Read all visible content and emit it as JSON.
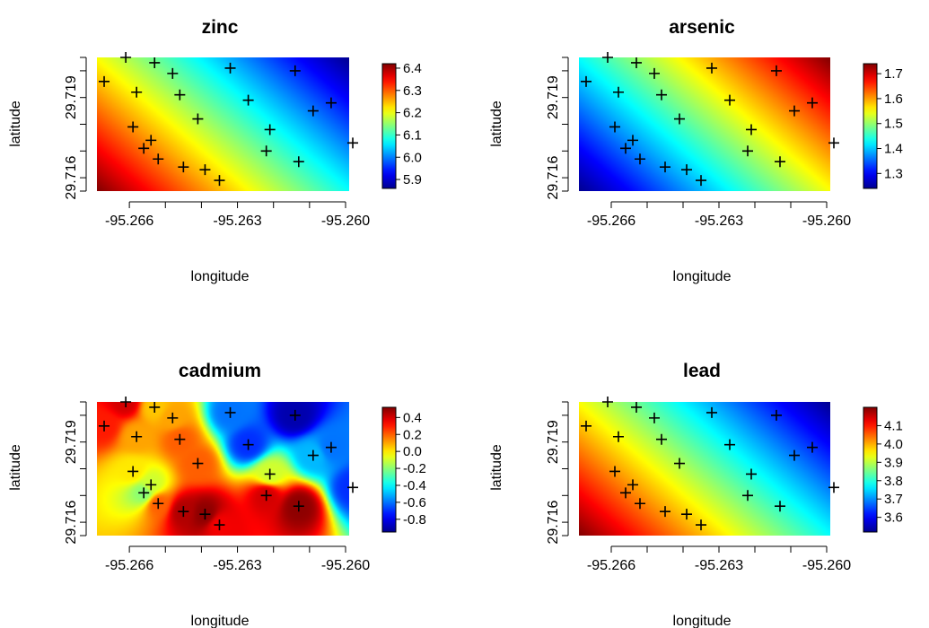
{
  "shared": {
    "xlabel": "longitude",
    "ylabel": "latitude",
    "xlim": [
      -95.2669,
      -95.2599
    ],
    "ylim": [
      29.7155,
      29.7205
    ],
    "x_ticks": [
      "-95.266",
      "-95.263",
      "-95.260"
    ],
    "y_ticks": [
      "29.716",
      "29.719"
    ],
    "x_tick_values": [
      -95.266,
      -95.265,
      -95.264,
      -95.263,
      -95.262,
      -95.261,
      -95.26
    ],
    "y_tick_values": [
      29.7155,
      29.716,
      29.717,
      29.718,
      29.719,
      29.72,
      29.7205
    ],
    "colormap": [
      "#00008f",
      "#0000ff",
      "#0080ff",
      "#00ffff",
      "#80ff80",
      "#ffff00",
      "#ff8000",
      "#ff0000",
      "#800000"
    ]
  },
  "samples": [
    {
      "lon": -95.2667,
      "lat": 29.7196
    },
    {
      "lon": -95.2661,
      "lat": 29.7205
    },
    {
      "lon": -95.2658,
      "lat": 29.7192
    },
    {
      "lon": -95.2659,
      "lat": 29.7179
    },
    {
      "lon": -95.2646,
      "lat": 29.7191
    },
    {
      "lon": -95.2645,
      "lat": 29.7164
    },
    {
      "lon": -95.2639,
      "lat": 29.7163
    },
    {
      "lon": -95.2648,
      "lat": 29.7199
    },
    {
      "lon": -95.2653,
      "lat": 29.7203
    },
    {
      "lon": -95.2635,
      "lat": 29.7159
    },
    {
      "lon": -95.2613,
      "lat": 29.7166
    },
    {
      "lon": -95.2609,
      "lat": 29.7185
    },
    {
      "lon": -95.2614,
      "lat": 29.72
    },
    {
      "lon": -95.2604,
      "lat": 29.7188
    },
    {
      "lon": -95.2598,
      "lat": 29.7173
    },
    {
      "lon": -95.2641,
      "lat": 29.7182
    },
    {
      "lon": -95.2621,
      "lat": 29.7178
    },
    {
      "lon": -95.2627,
      "lat": 29.7189
    },
    {
      "lon": -95.2632,
      "lat": 29.7201
    },
    {
      "lon": -95.2622,
      "lat": 29.717
    },
    {
      "lon": -95.2656,
      "lat": 29.7171
    },
    {
      "lon": -95.2654,
      "lat": 29.7174
    },
    {
      "lon": -95.2652,
      "lat": 29.7167
    }
  ],
  "chart_data": [
    {
      "type": "heatmap",
      "title": "zinc",
      "xlabel": "longitude",
      "ylabel": "latitude",
      "colorbar": {
        "min": 5.86,
        "max": 6.42,
        "ticks": [
          "6.4",
          "6.3",
          "6.2",
          "6.1",
          "6.0",
          "5.9"
        ],
        "tick_values": [
          6.4,
          6.3,
          6.2,
          6.1,
          6.0,
          5.9
        ]
      },
      "surface": {
        "kind": "linear",
        "low_corner": "bottom-left",
        "high_corner": "top-right",
        "min": 5.86,
        "max": 6.42,
        "invert": true
      }
    },
    {
      "type": "heatmap",
      "title": "arsenic",
      "xlabel": "longitude",
      "ylabel": "latitude",
      "colorbar": {
        "min": 1.24,
        "max": 1.74,
        "ticks": [
          "1.7",
          "1.6",
          "1.5",
          "1.4",
          "1.3"
        ],
        "tick_values": [
          1.7,
          1.6,
          1.5,
          1.4,
          1.3
        ]
      },
      "surface": {
        "kind": "linear",
        "low_corner": "bottom-left",
        "high_corner": "top-right",
        "min": 1.24,
        "max": 1.74,
        "invert": false
      }
    },
    {
      "type": "heatmap",
      "title": "cadmium",
      "xlabel": "longitude",
      "ylabel": "latitude",
      "colorbar": {
        "min": -0.95,
        "max": 0.52,
        "ticks": [
          "0.4",
          "0.2",
          "0.0",
          "-0.2",
          "-0.4",
          "-0.6",
          "-0.8"
        ],
        "tick_values": [
          0.4,
          0.2,
          0.0,
          -0.2,
          -0.4,
          -0.6,
          -0.8
        ]
      },
      "surface": {
        "kind": "idw",
        "min": -0.95,
        "max": 0.52,
        "sample_values": [
          0.3,
          0.4,
          0.1,
          0.0,
          0.2,
          0.45,
          0.5,
          0.1,
          0.05,
          0.35,
          0.5,
          -0.5,
          -0.9,
          -0.6,
          -0.7,
          0.2,
          -0.1,
          -0.7,
          -0.6,
          0.4,
          -0.2,
          -0.1,
          0.2
        ]
      }
    },
    {
      "type": "heatmap",
      "title": "lead",
      "xlabel": "longitude",
      "ylabel": "latitude",
      "colorbar": {
        "min": 3.52,
        "max": 4.2,
        "ticks": [
          "4.1",
          "4.0",
          "3.9",
          "3.8",
          "3.7",
          "3.6"
        ],
        "tick_values": [
          4.1,
          4.0,
          3.9,
          3.8,
          3.7,
          3.6
        ]
      },
      "surface": {
        "kind": "linear",
        "low_corner": "bottom-left",
        "high_corner": "top-right",
        "min": 3.52,
        "max": 4.2,
        "invert": true
      }
    }
  ]
}
